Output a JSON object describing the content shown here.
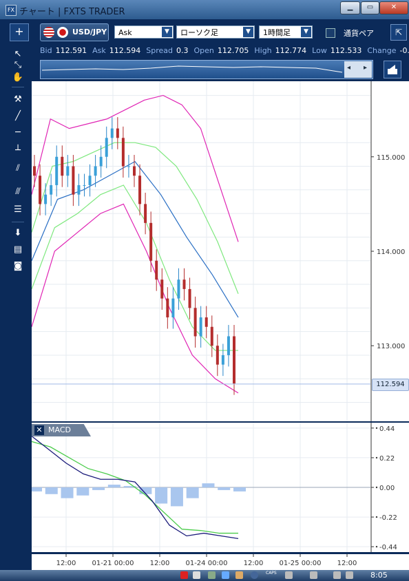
{
  "window": {
    "title": "チャート | FXTS TRADER",
    "icon": "FX",
    "buttons": [
      "minimize",
      "maximize",
      "close"
    ]
  },
  "toolbar": {
    "add_button": "+",
    "symbol": "USD/JPY",
    "price_type": "Ask",
    "chart_type": "ローソク足",
    "timeframe": "1時間足",
    "currency_check_label": "通貨ペア"
  },
  "quote": {
    "bid_label": "Bid",
    "bid": "112.591",
    "ask_label": "Ask",
    "ask": "112.594",
    "spread_label": "Spread",
    "spread": "0.3",
    "open_label": "Open",
    "open": "112.705",
    "high_label": "High",
    "high": "112.774",
    "low_label": "Low",
    "low": "112.533",
    "change_label": "Change",
    "change": "-0."
  },
  "price_axis": {
    "ticks": [
      "115.000",
      "114.000",
      "113.000"
    ],
    "current_price_tag": "112.594"
  },
  "macd": {
    "label": "MACD",
    "ticks": [
      "0.44",
      "0.22",
      "0.00",
      "-0.22",
      "-0.44"
    ]
  },
  "x_axis": {
    "ticks": [
      "12:00",
      "01-21 00:00",
      "12:00",
      "01-24 00:00",
      "12:00",
      "01-25 00:00",
      "12:00"
    ]
  },
  "taskbar": {
    "time": "8:05",
    "caps_label": "CAPS"
  },
  "chart_data": [
    {
      "type": "candlestick",
      "title": "",
      "ylim": [
        112.2,
        115.8
      ],
      "closes": [
        114.8,
        114.5,
        114.6,
        114.7,
        115.0,
        114.8,
        114.9,
        114.6,
        114.7,
        114.7,
        114.8,
        114.9,
        115.0,
        115.2,
        115.3,
        115.2,
        114.9,
        114.9,
        114.8,
        114.5,
        114.3,
        113.9,
        113.7,
        113.5,
        113.3,
        113.5,
        113.7,
        113.6,
        113.4,
        113.1,
        113.3,
        113.2,
        113.0,
        112.8,
        112.9,
        113.1,
        112.6
      ],
      "upper_band": [
        114.6,
        115.4,
        115.3,
        115.35,
        115.4,
        115.5,
        115.6,
        115.65,
        115.55,
        115.3,
        114.7,
        114.1
      ],
      "middle_upper_band": [
        114.2,
        114.9,
        114.95,
        115.05,
        115.15,
        115.15,
        115.1,
        114.9,
        114.55,
        114.1,
        113.55
      ],
      "middle_band": [
        113.9,
        114.55,
        114.65,
        114.8,
        114.95,
        114.6,
        114.15,
        113.75,
        113.3
      ],
      "middle_lower_band": [
        113.6,
        114.25,
        114.4,
        114.6,
        114.7,
        114.3,
        113.7,
        113.2,
        112.95,
        112.95
      ],
      "lower_band": [
        113.2,
        114.0,
        114.2,
        114.4,
        114.5,
        114.0,
        113.4,
        112.9,
        112.65,
        112.5
      ]
    },
    {
      "type": "line",
      "title": "MACD",
      "ylim": [
        -0.48,
        0.48
      ],
      "macd_line": [
        0.38,
        0.28,
        0.18,
        0.1,
        0.06,
        0.06,
        0.04,
        -0.1,
        -0.28,
        -0.36,
        -0.34,
        -0.36,
        -0.38
      ],
      "signal_line": [
        0.34,
        0.3,
        0.22,
        0.14,
        0.1,
        0.05,
        -0.05,
        -0.18,
        -0.31,
        -0.32,
        -0.34,
        -0.34
      ],
      "histogram": [
        -0.03,
        -0.05,
        -0.08,
        -0.06,
        -0.02,
        0.02,
        0.01,
        -0.05,
        -0.12,
        -0.14,
        -0.08,
        0.03,
        -0.02,
        -0.03
      ]
    }
  ]
}
